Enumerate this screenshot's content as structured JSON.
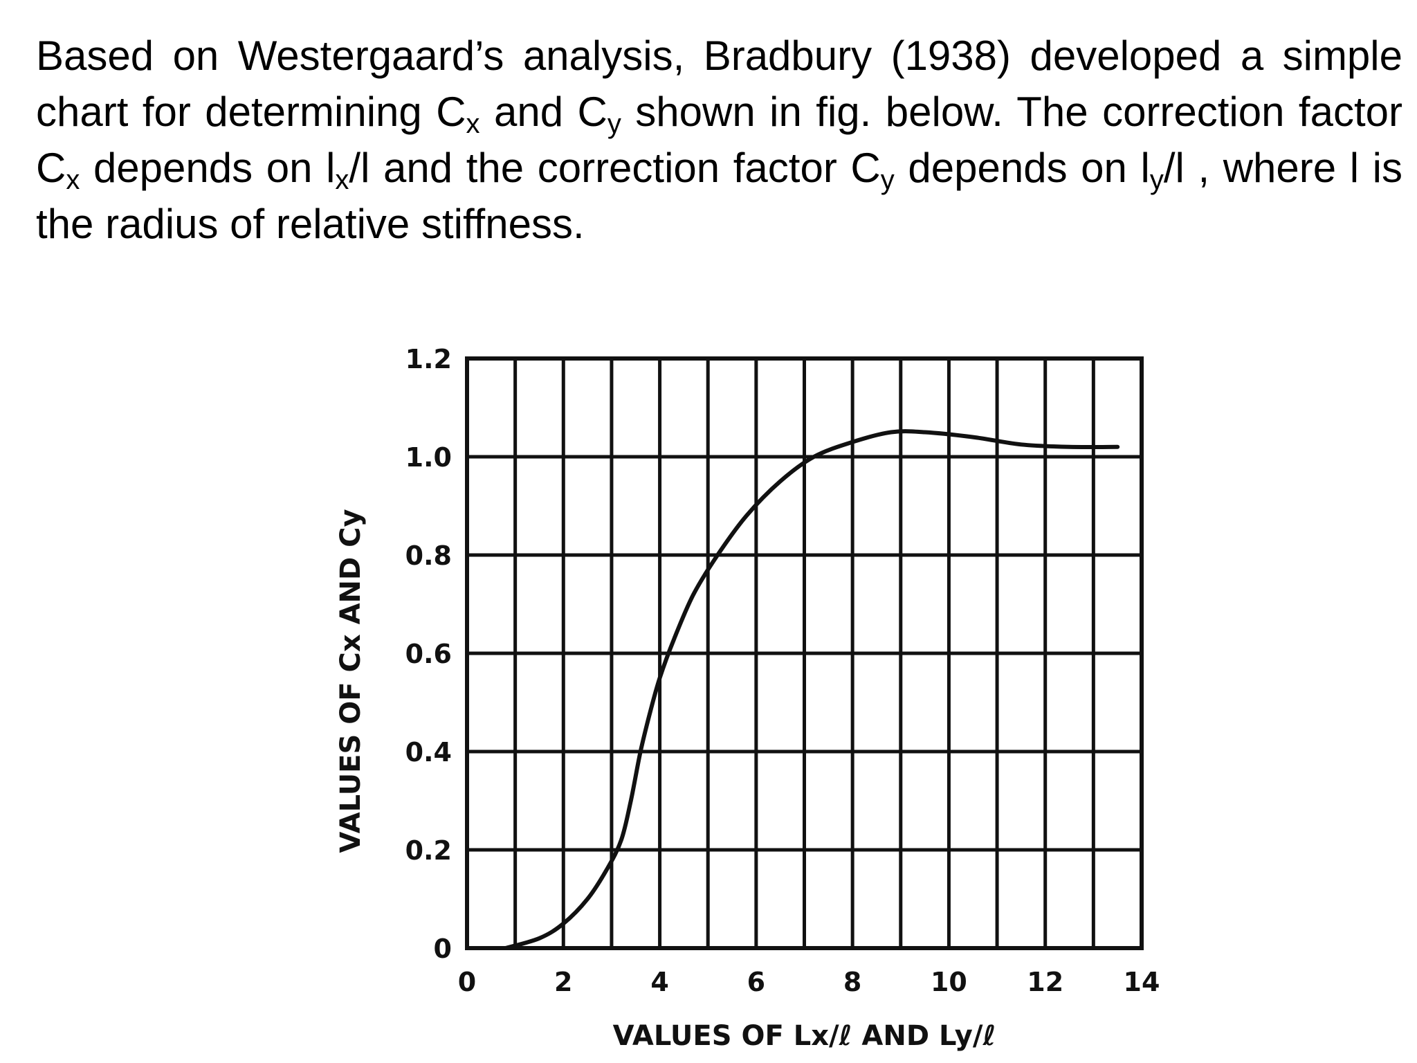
{
  "intro": {
    "t1": "Based on Westergaard’s analysis, Bradbury (1938) developed a simple chart for determining C",
    "s1": "x",
    "t2": " and C",
    "s2": "y",
    "t3": " shown in fig. below. The correction factor C",
    "s3": "x",
    "t4": " depends on l",
    "s4": "x",
    "t5": "/l and the correction factor C",
    "s5": "y",
    "t6": " depends on l",
    "s6": "y",
    "t7": "/l , where l is the radius of relative stiffness."
  },
  "chart_data": {
    "type": "line",
    "xlabel": "VALUES OF Lx/ℓ AND Ly/ℓ",
    "ylabel": "VALUES OF Cx AND Cy",
    "xlim": [
      0,
      14
    ],
    "ylim": [
      0,
      1.2
    ],
    "xticks": [
      0,
      2,
      4,
      6,
      8,
      10,
      12,
      14
    ],
    "yticks": [
      0,
      0.2,
      0.4,
      0.6,
      0.8,
      1.0,
      1.2
    ],
    "xtick_labels": [
      "0",
      "2",
      "4",
      "6",
      "8",
      "10",
      "12",
      "14"
    ],
    "ytick_labels": [
      "0",
      "0.2",
      "0.4",
      "0.6",
      "0.8",
      "1.0",
      "1.2"
    ],
    "grid": true,
    "series": [
      {
        "x": [
          0.8,
          1.5,
          2.0,
          2.5,
          2.9,
          3.2,
          3.4,
          3.6,
          3.8,
          4.0,
          4.3,
          4.7,
          5.2,
          5.8,
          6.5,
          7.2,
          8.0,
          8.8,
          9.5,
          10.5,
          11.5,
          12.5,
          13.5
        ],
        "y": [
          0.0,
          0.02,
          0.05,
          0.1,
          0.16,
          0.22,
          0.3,
          0.4,
          0.48,
          0.55,
          0.63,
          0.72,
          0.8,
          0.88,
          0.95,
          1.0,
          1.03,
          1.05,
          1.05,
          1.04,
          1.025,
          1.02,
          1.02
        ]
      }
    ]
  },
  "colors": {
    "ink": "#111111",
    "background": "#ffffff"
  }
}
